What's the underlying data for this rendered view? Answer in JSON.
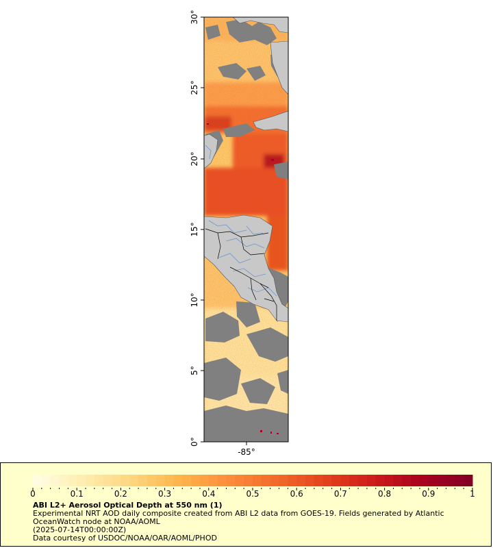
{
  "map": {
    "lat_ticks": [
      "0°",
      "5°",
      "10°",
      "15°",
      "20°",
      "25°",
      "30°"
    ],
    "lon_ticks": [
      "-85°"
    ],
    "colors": {
      "land": "#c8c8c8",
      "no_data": "#808080",
      "coastline": "#555555",
      "borders": "#000000",
      "rivers": "#6a96c8"
    }
  },
  "colorbar": {
    "labels": [
      "0",
      "0.1",
      "0.2",
      "0.3",
      "0.4",
      "0.5",
      "0.6",
      "0.7",
      "0.8",
      "0.9",
      "1"
    ],
    "min": 0,
    "max": 1,
    "colors": [
      "#ffffe6",
      "#ffeeb0",
      "#fed680",
      "#feb54a",
      "#fd8d3c",
      "#f26a2a",
      "#e4411d",
      "#cc1a1a",
      "#a8001e",
      "#800026"
    ]
  },
  "legend": {
    "title": "ABI L2+ Aerosol Optical Depth at 550 nm (1)",
    "line1": "Experimental NRT AOD daily composite created from ABI L2 data from GOES-19. Fields generated by Atlantic OceanWatch node at NOAA/AOML",
    "line2": "(2025-07-14T00:00:00Z)",
    "line3": "Data courtesy of USDOC/NOAA/OAR/AOML/PHOD"
  }
}
